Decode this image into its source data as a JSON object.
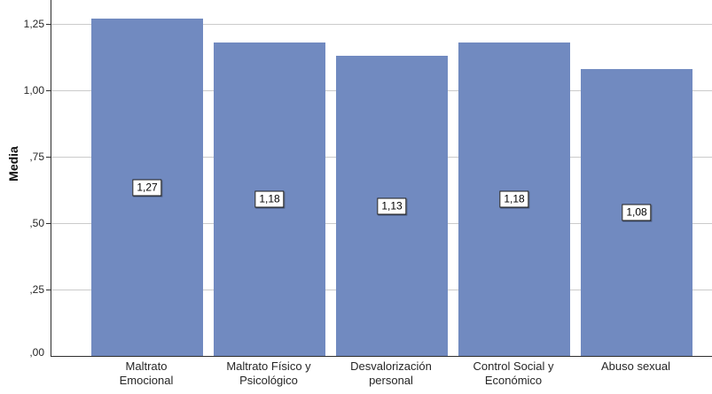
{
  "colors": {
    "bar_fill": "#718AC0",
    "gridline": "#cbcbcb",
    "axis": "#2e2e2e",
    "text": "#262626"
  },
  "chart_data": {
    "type": "bar",
    "title": "",
    "xlabel": "",
    "ylabel": "Media",
    "categories": [
      "Maltrato\nEmocional",
      "Maltrato Físico y\nPsicológico",
      "Desvalorización\npersonal",
      "Control Social y\nEconómico",
      "Abuso sexual"
    ],
    "values": [
      1.27,
      1.18,
      1.13,
      1.18,
      1.08
    ],
    "value_labels": [
      "1,27",
      "1,18",
      "1,13",
      "1,18",
      "1,08"
    ],
    "y_ticks": [
      {
        "v": 0.0,
        "label": ",00"
      },
      {
        "v": 0.25,
        "label": ",25"
      },
      {
        "v": 0.5,
        "label": ",50"
      },
      {
        "v": 0.75,
        "label": ",75"
      },
      {
        "v": 1.0,
        "label": "1,00"
      },
      {
        "v": 1.25,
        "label": "1,25"
      }
    ],
    "ylim": [
      0,
      1.34
    ],
    "grid": true,
    "legend": "none",
    "decimal_separator": ","
  }
}
